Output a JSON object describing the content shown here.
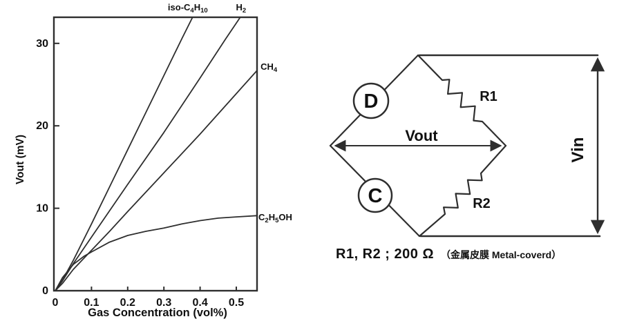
{
  "page": {
    "background": "#ffffff",
    "ink": "#2e2e2e",
    "text": "#101010"
  },
  "chart_data": {
    "type": "line",
    "title": "",
    "xlabel": "Gas Concentration (vol%)",
    "ylabel": "Vout (mV)",
    "xlim": [
      0,
      0.557
    ],
    "ylim": [
      0,
      33.2
    ],
    "grid": false,
    "legend_position": "inline-labels",
    "x_ticks": [
      {
        "v": 0,
        "label": "0"
      },
      {
        "v": 0.1,
        "label": "0.1"
      },
      {
        "v": 0.2,
        "label": "0.2"
      },
      {
        "v": 0.3,
        "label": "0.3"
      },
      {
        "v": 0.4,
        "label": "0.4"
      },
      {
        "v": 0.5,
        "label": "0.5"
      }
    ],
    "y_ticks": [
      {
        "v": 0,
        "label": "0"
      },
      {
        "v": 10,
        "label": "10"
      },
      {
        "v": 20,
        "label": "20"
      },
      {
        "v": 30,
        "label": "30"
      }
    ],
    "series": [
      {
        "name": "iso-C4H10",
        "label_parts": [
          [
            "iso-C",
            0
          ],
          [
            "4",
            1
          ],
          [
            "H",
            0
          ],
          [
            "10",
            1
          ]
        ],
        "label_pos": {
          "x": 0.366,
          "y": 34.0,
          "anchor": "middle"
        },
        "x": [
          0,
          0.02,
          0.05,
          0.1,
          0.15,
          0.2,
          0.25,
          0.3,
          0.35,
          0.383
        ],
        "y": [
          0,
          1.3,
          3.7,
          8.1,
          12.6,
          17.1,
          21.6,
          26.1,
          30.6,
          33.5
        ]
      },
      {
        "name": "H2",
        "label_parts": [
          [
            "H",
            0
          ],
          [
            "2",
            1
          ]
        ],
        "label_pos": {
          "x": 0.513,
          "y": 34.0,
          "anchor": "middle"
        },
        "x": [
          0,
          0.02,
          0.05,
          0.1,
          0.2,
          0.3,
          0.4,
          0.47,
          0.516
        ],
        "y": [
          0,
          1.2,
          3.3,
          6.5,
          12.9,
          19.2,
          25.8,
          30.5,
          33.5
        ]
      },
      {
        "name": "CH4",
        "label_parts": [
          [
            "CH",
            0
          ],
          [
            "4",
            1
          ]
        ],
        "label_pos": {
          "x": 0.567,
          "y": 26.8,
          "anchor": "start"
        },
        "x": [
          0,
          0.02,
          0.05,
          0.1,
          0.15,
          0.2,
          0.3,
          0.4,
          0.5,
          0.557
        ],
        "y": [
          0,
          0.9,
          2.6,
          4.9,
          7.2,
          9.6,
          14.3,
          19.0,
          23.9,
          26.7
        ]
      },
      {
        "name": "C2H5OH",
        "label_parts": [
          [
            "C",
            0
          ],
          [
            "2",
            1
          ],
          [
            "H",
            0
          ],
          [
            "5",
            1
          ],
          [
            "OH",
            0
          ]
        ],
        "label_pos": {
          "x": 0.561,
          "y": 8.55,
          "anchor": "start"
        },
        "x": [
          0,
          0.02,
          0.05,
          0.08,
          0.1,
          0.15,
          0.2,
          0.25,
          0.3,
          0.35,
          0.4,
          0.45,
          0.5,
          0.557
        ],
        "y": [
          0,
          1.6,
          3.2,
          4.2,
          4.7,
          5.9,
          6.7,
          7.2,
          7.6,
          8.1,
          8.5,
          8.8,
          8.95,
          9.1
        ]
      }
    ]
  },
  "circuit": {
    "detector_label": "D",
    "compensator_label": "C",
    "r1_label": "R1",
    "r2_label": "R2",
    "vout_label": "Vout",
    "vin_label": "Vin",
    "caption_main": "R1, R2 ; 200 Ω",
    "caption_note": "（金属皮膜 Metal-coverd）"
  }
}
